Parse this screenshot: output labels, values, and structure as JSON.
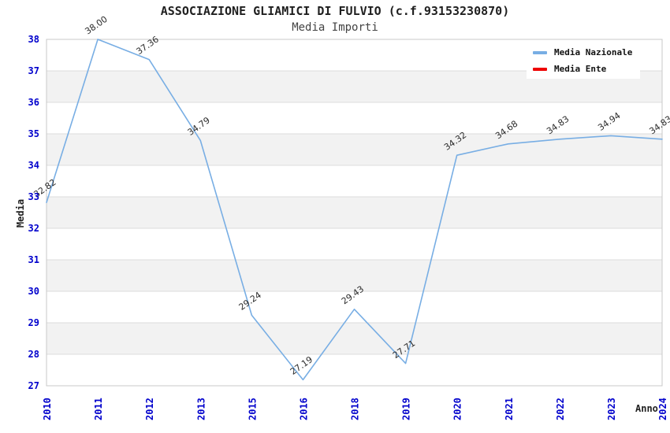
{
  "header": {
    "title": "ASSOCIAZIONE GLIAMICI DI FULVIO (c.f.93153230870)",
    "subtitle": "Media Importi"
  },
  "axes": {
    "y_title": "Media",
    "x_title": "Anno"
  },
  "legend": {
    "items": [
      {
        "label": "Media Nazionale",
        "color": "#78aee4"
      },
      {
        "label": "Media Ente",
        "color": "#ee0000"
      }
    ]
  },
  "chart_data": {
    "type": "line",
    "title": "ASSOCIAZIONE GLIAMICI DI FULVIO (c.f.93153230870)",
    "subtitle": "Media Importi",
    "xlabel": "Anno",
    "ylabel": "Media",
    "categories": [
      "2010",
      "2011",
      "2012",
      "2013",
      "2015",
      "2016",
      "2018",
      "2019",
      "2020",
      "2021",
      "2022",
      "2023",
      "2024"
    ],
    "series": [
      {
        "name": "Media Nazionale",
        "color": "#78aee4",
        "values": [
          32.82,
          38.0,
          37.36,
          34.79,
          29.24,
          27.19,
          29.43,
          27.71,
          34.32,
          34.68,
          34.83,
          34.94,
          34.83
        ],
        "point_labels": [
          "32.82",
          "38.00",
          "37.36",
          "34.79",
          "29.24",
          "27.19",
          "29.43",
          "27.71",
          "34.32",
          "34.68",
          "34.83",
          "34.94",
          "34.83"
        ]
      },
      {
        "name": "Media Ente",
        "color": "#ee0000",
        "values": [],
        "point_labels": []
      }
    ],
    "ylim": [
      27,
      38
    ],
    "y_ticks": [
      27,
      28,
      29,
      30,
      31,
      32,
      33,
      34,
      35,
      36,
      37,
      38
    ],
    "grid": true,
    "alternating_bands": true,
    "legend_position": "top-right",
    "style": {
      "tick_label_color": "#0000cc",
      "band_fill": "#f2f2f2",
      "grid_color": "#dcdcdc",
      "plot_border_color": "#c9c9c9",
      "data_label_color": "#2b2b2b",
      "title_color": "#1f1f1f",
      "subtitle_color": "#444444"
    }
  }
}
